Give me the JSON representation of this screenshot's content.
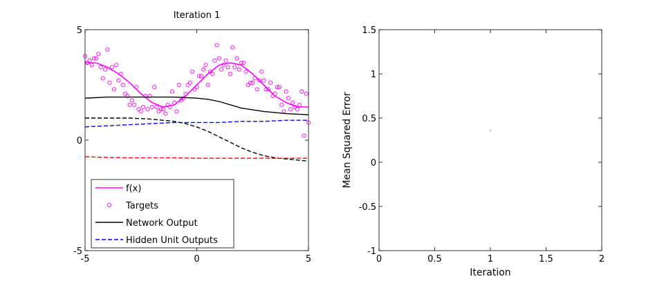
{
  "chart_data": [
    {
      "type": "line",
      "title": "Iteration 1",
      "xlabel": "",
      "ylabel": "",
      "xlim": [
        -5,
        5
      ],
      "ylim": [
        -5,
        5
      ],
      "xticks": [
        "-5",
        "0",
        "5"
      ],
      "yticks": [
        "-5",
        "0",
        "5"
      ],
      "grid": false,
      "legend_position": "bottom-left",
      "legend": [
        "f(x)",
        "Targets",
        "Network Output",
        "Hidden Unit Outputs"
      ],
      "series": [
        {
          "name": "f(x)",
          "style": "solid",
          "color": "#ff00ff",
          "x": [
            -5.0,
            -4.5,
            -4.0,
            -3.5,
            -3.0,
            -2.5,
            -2.0,
            -1.5,
            -1.0,
            -0.5,
            0.0,
            0.5,
            1.0,
            1.5,
            2.0,
            2.5,
            3.0,
            3.5,
            4.0,
            4.5,
            5.0
          ],
          "y": [
            3.5,
            3.5,
            3.3,
            3.0,
            2.6,
            2.1,
            1.7,
            1.5,
            1.6,
            2.0,
            2.5,
            3.0,
            3.4,
            3.5,
            3.4,
            3.0,
            2.5,
            2.0,
            1.7,
            1.5,
            1.5
          ]
        },
        {
          "name": "Targets",
          "style": "markers",
          "color": "#ff00ff",
          "x": [
            -5.0,
            -4.9,
            -4.8,
            -4.7,
            -4.6,
            -4.5,
            -4.4,
            -4.3,
            -4.2,
            -4.1,
            -4.0,
            -3.9,
            -3.8,
            -3.7,
            -3.6,
            -3.5,
            -3.4,
            -3.3,
            -3.2,
            -3.1,
            -3.0,
            -2.9,
            -2.8,
            -2.7,
            -2.6,
            -2.5,
            -2.4,
            -2.3,
            -2.2,
            -2.1,
            -2.0,
            -1.9,
            -1.8,
            -1.7,
            -1.6,
            -1.5,
            -1.4,
            -1.3,
            -1.2,
            -1.1,
            -1.0,
            -0.9,
            -0.8,
            -0.7,
            -0.6,
            -0.5,
            -0.4,
            -0.3,
            -0.2,
            -0.1,
            0.0,
            0.1,
            0.2,
            0.3,
            0.4,
            0.5,
            0.6,
            0.7,
            0.8,
            0.9,
            1.0,
            1.1,
            1.2,
            1.3,
            1.4,
            1.5,
            1.6,
            1.7,
            1.8,
            1.9,
            2.0,
            2.1,
            2.2,
            2.3,
            2.4,
            2.5,
            2.6,
            2.7,
            2.8,
            2.9,
            3.0,
            3.1,
            3.2,
            3.3,
            3.4,
            3.5,
            3.6,
            3.7,
            3.8,
            3.9,
            4.0,
            4.1,
            4.2,
            4.3,
            4.4,
            4.5,
            4.6,
            4.7,
            4.8,
            4.9,
            5.0
          ],
          "y": [
            3.8,
            3.5,
            3.6,
            3.4,
            3.7,
            3.7,
            3.9,
            3.3,
            2.8,
            3.2,
            4.1,
            2.6,
            3.3,
            2.3,
            3.4,
            2.7,
            3.0,
            2.5,
            2.1,
            2.0,
            1.6,
            1.8,
            1.6,
            2.4,
            1.4,
            1.3,
            1.5,
            2.0,
            1.4,
            2.0,
            1.5,
            2.4,
            1.5,
            1.3,
            1.4,
            1.4,
            1.2,
            1.6,
            1.5,
            2.2,
            1.7,
            1.3,
            2.5,
            1.8,
            1.9,
            2.1,
            2.5,
            2.6,
            3.1,
            2.3,
            2.4,
            2.9,
            2.9,
            3.2,
            3.4,
            2.5,
            3.1,
            3.0,
            3.6,
            4.3,
            3.7,
            3.2,
            3.4,
            3.6,
            3.3,
            3.0,
            4.2,
            3.3,
            3.7,
            3.2,
            3.5,
            3.5,
            3.1,
            2.5,
            2.6,
            2.6,
            2.8,
            2.3,
            2.7,
            3.1,
            2.7,
            2.3,
            2.3,
            2.6,
            2.0,
            2.1,
            2.4,
            2.4,
            1.6,
            1.3,
            2.2,
            1.9,
            1.4,
            1.7,
            1.5,
            1.4,
            1.6,
            2.2,
            0.2,
            2.1,
            0.8
          ]
        },
        {
          "name": "Network Output",
          "style": "solid",
          "color": "#000000",
          "x": [
            -5.0,
            -4.0,
            -3.0,
            -2.0,
            -1.0,
            0.0,
            0.5,
            1.0,
            1.5,
            2.0,
            3.0,
            4.0,
            5.0
          ],
          "y": [
            1.9,
            1.95,
            1.95,
            1.95,
            1.95,
            1.9,
            1.85,
            1.75,
            1.6,
            1.45,
            1.3,
            1.2,
            1.15
          ]
        },
        {
          "name": "Hidden Unit Outputs",
          "style": "dashed",
          "color": "#0000ff",
          "x": [
            -5.0,
            -4.0,
            -3.0,
            -2.0,
            -1.0,
            0.0,
            1.0,
            2.0,
            3.0,
            4.0,
            5.0
          ],
          "y": [
            0.6,
            0.65,
            0.7,
            0.75,
            0.8,
            0.8,
            0.8,
            0.85,
            0.85,
            0.9,
            0.9
          ]
        },
        {
          "name": "",
          "style": "dashed",
          "color": "#000000",
          "x": [
            -5.0,
            -4.0,
            -3.0,
            -2.0,
            -1.0,
            -0.5,
            0.0,
            0.5,
            1.0,
            1.5,
            2.0,
            2.5,
            3.0,
            3.5,
            4.0,
            4.5,
            5.0
          ],
          "y": [
            1.0,
            1.0,
            1.0,
            0.95,
            0.85,
            0.75,
            0.6,
            0.4,
            0.15,
            -0.1,
            -0.35,
            -0.55,
            -0.7,
            -0.8,
            -0.85,
            -0.9,
            -0.95
          ]
        },
        {
          "name": "",
          "style": "dashed",
          "color": "#ff0000",
          "x": [
            -5.0,
            -4.0,
            -3.0,
            -2.0,
            -1.0,
            0.0,
            1.0,
            2.0,
            3.0,
            4.0,
            5.0
          ],
          "y": [
            -0.75,
            -0.78,
            -0.8,
            -0.8,
            -0.8,
            -0.82,
            -0.82,
            -0.82,
            -0.82,
            -0.82,
            -0.82
          ]
        }
      ]
    },
    {
      "type": "line",
      "title": "",
      "xlabel": "Iteration",
      "ylabel": "Mean Squared Error",
      "xlim": [
        0,
        2
      ],
      "ylim": [
        -1,
        1.5
      ],
      "xticks": [
        "0",
        "0.5",
        "1",
        "1.5",
        "2"
      ],
      "yticks": [
        "-1",
        "-0.5",
        "0",
        "0.5",
        "1",
        "1.5"
      ],
      "grid": false,
      "series": [
        {
          "name": "",
          "color": "#000000",
          "x": [
            1
          ],
          "y": [
            0.36
          ]
        }
      ]
    }
  ]
}
